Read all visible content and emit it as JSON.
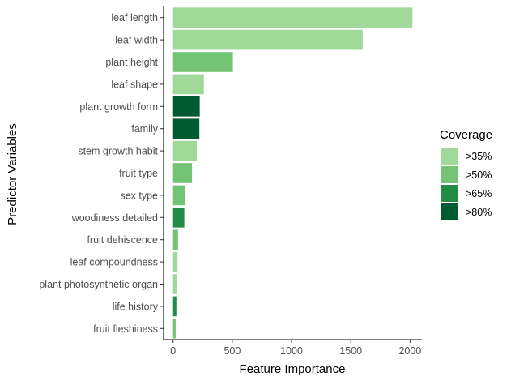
{
  "chart_data": {
    "type": "bar",
    "orientation": "horizontal",
    "xlabel": "Feature Importance",
    "ylabel": "Predictor Variables",
    "xlim": [
      -80,
      2100
    ],
    "xticks": [
      0,
      500,
      1000,
      1500,
      2000
    ],
    "categories": [
      "leaf length",
      "leaf width",
      "plant height",
      "leaf shape",
      "plant growth form",
      "family",
      "stem growth habit",
      "fruit type",
      "sex type",
      "woodiness detailed",
      "fruit dehiscence",
      "leaf compoundness",
      "plant photosynthetic organ",
      "life history",
      "fruit fleshiness"
    ],
    "values": [
      2020,
      1600,
      505,
      260,
      225,
      222,
      200,
      160,
      105,
      95,
      42,
      38,
      36,
      28,
      22
    ],
    "coverage": [
      ">35%",
      ">35%",
      ">50%",
      ">35%",
      ">80%",
      ">80%",
      ">35%",
      ">50%",
      ">50%",
      ">65%",
      ">50%",
      ">35%",
      ">35%",
      ">65%",
      ">50%"
    ],
    "legend": {
      "title": "Coverage",
      "position": "right",
      "items": [
        {
          "label": ">35%",
          "color": "#a1d99b"
        },
        {
          "label": ">50%",
          "color": "#74c476"
        },
        {
          "label": ">65%",
          "color": "#238b45"
        },
        {
          "label": ">80%",
          "color": "#005a32"
        }
      ]
    },
    "grid": false
  }
}
